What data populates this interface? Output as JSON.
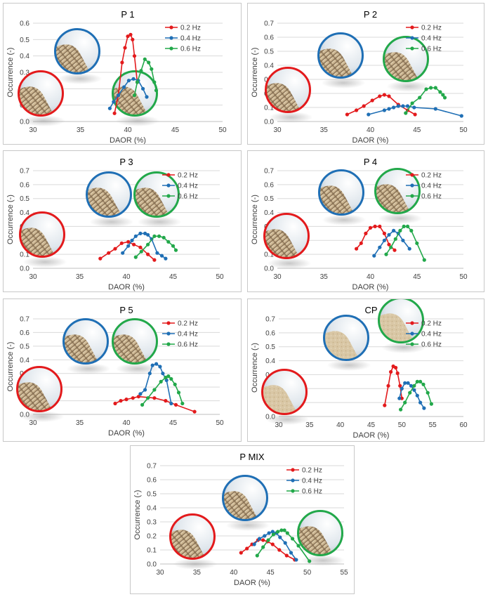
{
  "legend_labels": [
    "0.2 Hz",
    "0.4 Hz",
    "0.6 Hz"
  ],
  "colors": {
    "s02": "#e31a1c",
    "s04": "#1f6fb5",
    "s06": "#22a84a"
  },
  "chart_data": [
    {
      "type": "line",
      "title": "P 1",
      "xlabel": "DAOR (%)",
      "ylabel": "Occurrence (-)",
      "xlim": [
        30,
        50
      ],
      "ylim": [
        0,
        0.6
      ],
      "xticks": [
        30,
        35,
        40,
        45,
        50
      ],
      "yticks": [
        0,
        0.1,
        0.2,
        0.3,
        0.4,
        0.5,
        0.6
      ],
      "legend_position": "top-right",
      "grid": true,
      "series": [
        {
          "name": "0.2 Hz",
          "x": [
            38.6,
            39.0,
            39.4,
            39.7,
            40.0,
            40.3,
            40.5,
            40.7,
            41.0
          ],
          "y": [
            0.05,
            0.16,
            0.36,
            0.45,
            0.52,
            0.53,
            0.5,
            0.4,
            0.24
          ]
        },
        {
          "name": "0.4 Hz",
          "x": [
            38.1,
            38.5,
            39.0,
            39.6,
            40.1,
            40.6,
            41.1,
            41.6,
            42.0
          ],
          "y": [
            0.08,
            0.12,
            0.16,
            0.21,
            0.25,
            0.26,
            0.25,
            0.2,
            0.15
          ]
        },
        {
          "name": "0.6 Hz",
          "x": [
            40.7,
            41.0,
            41.4,
            41.8,
            42.2,
            42.5,
            42.8,
            43.0
          ],
          "y": [
            0.16,
            0.24,
            0.31,
            0.38,
            0.36,
            0.32,
            0.24,
            0.19
          ]
        }
      ]
    },
    {
      "type": "line",
      "title": "P 2",
      "xlabel": "DAOR (%)",
      "ylabel": "Occurrence (-)",
      "xlim": [
        30,
        50
      ],
      "ylim": [
        0,
        0.7
      ],
      "xticks": [
        30,
        35,
        40,
        45,
        50
      ],
      "yticks": [
        0,
        0.1,
        0.2,
        0.3,
        0.4,
        0.5,
        0.6,
        0.7
      ],
      "legend_position": "top-right",
      "grid": true,
      "series": [
        {
          "name": "0.2 Hz",
          "x": [
            37.5,
            38.5,
            39.3,
            40.2,
            41.0,
            41.5,
            42.0,
            43.0,
            44.0,
            44.8
          ],
          "y": [
            0.05,
            0.08,
            0.11,
            0.15,
            0.18,
            0.19,
            0.18,
            0.12,
            0.08,
            0.05
          ]
        },
        {
          "name": "0.4 Hz",
          "x": [
            39.8,
            41.5,
            42.0,
            42.5,
            43.0,
            43.5,
            44.0,
            44.7,
            47.0,
            49.8
          ],
          "y": [
            0.05,
            0.08,
            0.09,
            0.1,
            0.11,
            0.11,
            0.11,
            0.1,
            0.09,
            0.04
          ]
        },
        {
          "name": "0.6 Hz",
          "x": [
            43.8,
            44.5,
            45.3,
            46.0,
            46.5,
            47.0,
            47.5,
            47.8,
            48.0
          ],
          "y": [
            0.06,
            0.13,
            0.17,
            0.23,
            0.24,
            0.24,
            0.21,
            0.19,
            0.17
          ]
        }
      ]
    },
    {
      "type": "line",
      "title": "P 3",
      "xlabel": "DAOR (%)",
      "ylabel": "Occurrence (-)",
      "xlim": [
        30,
        50
      ],
      "ylim": [
        0,
        0.7
      ],
      "xticks": [
        30,
        35,
        40,
        45,
        50
      ],
      "yticks": [
        0,
        0.1,
        0.2,
        0.3,
        0.4,
        0.5,
        0.6,
        0.7
      ],
      "legend_position": "top-right",
      "grid": true,
      "series": [
        {
          "name": "0.2 Hz",
          "x": [
            37.2,
            38.1,
            38.8,
            39.5,
            40.2,
            40.8,
            41.5,
            42.3,
            43.0
          ],
          "y": [
            0.07,
            0.11,
            0.14,
            0.18,
            0.19,
            0.17,
            0.15,
            0.1,
            0.06
          ]
        },
        {
          "name": "0.4 Hz",
          "x": [
            39.6,
            40.2,
            40.6,
            41.0,
            41.5,
            42.0,
            42.3,
            42.7,
            43.3,
            43.8,
            44.2
          ],
          "y": [
            0.11,
            0.16,
            0.2,
            0.23,
            0.25,
            0.25,
            0.24,
            0.21,
            0.11,
            0.09,
            0.07
          ]
        },
        {
          "name": "0.6 Hz",
          "x": [
            41.0,
            41.6,
            42.3,
            43.0,
            43.5,
            44.0,
            44.5,
            45.0,
            45.3
          ],
          "y": [
            0.08,
            0.12,
            0.17,
            0.23,
            0.23,
            0.22,
            0.19,
            0.16,
            0.13
          ]
        }
      ]
    },
    {
      "type": "line",
      "title": "P 4",
      "xlabel": "DAOR (%)",
      "ylabel": "Occurrence (-)",
      "xlim": [
        30,
        50
      ],
      "ylim": [
        0,
        0.7
      ],
      "xticks": [
        30,
        35,
        40,
        45,
        50
      ],
      "yticks": [
        0,
        0.1,
        0.2,
        0.3,
        0.4,
        0.5,
        0.6,
        0.7
      ],
      "legend_position": "top-right",
      "grid": true,
      "series": [
        {
          "name": "0.2 Hz",
          "x": [
            38.5,
            39.0,
            39.5,
            40.0,
            40.5,
            41.0,
            41.5,
            42.0,
            42.6
          ],
          "y": [
            0.14,
            0.18,
            0.25,
            0.29,
            0.3,
            0.3,
            0.25,
            0.17,
            0.13
          ]
        },
        {
          "name": "0.4 Hz",
          "x": [
            40.4,
            41.0,
            41.5,
            42.0,
            42.5,
            43.0,
            43.5,
            44.2
          ],
          "y": [
            0.09,
            0.15,
            0.2,
            0.24,
            0.27,
            0.25,
            0.2,
            0.14
          ]
        },
        {
          "name": "0.6 Hz",
          "x": [
            41.7,
            42.2,
            42.7,
            43.2,
            43.6,
            44.0,
            44.4,
            45.0,
            45.8
          ],
          "y": [
            0.1,
            0.15,
            0.21,
            0.27,
            0.3,
            0.3,
            0.27,
            0.18,
            0.06
          ]
        }
      ]
    },
    {
      "type": "line",
      "title": "P 5",
      "xlabel": "DAOR (%)",
      "ylabel": "Occurrence (-)",
      "xlim": [
        30,
        50
      ],
      "ylim": [
        0,
        0.7
      ],
      "xticks": [
        30,
        35,
        40,
        45,
        50
      ],
      "yticks": [
        0,
        0.1,
        0.2,
        0.3,
        0.4,
        0.5,
        0.6,
        0.7
      ],
      "legend_position": "top-right",
      "grid": true,
      "series": [
        {
          "name": "0.2 Hz",
          "x": [
            38.8,
            39.4,
            40.0,
            40.7,
            41.3,
            43.0,
            44.2,
            45.3,
            47.3
          ],
          "y": [
            0.08,
            0.1,
            0.11,
            0.12,
            0.13,
            0.12,
            0.1,
            0.07,
            0.02
          ]
        },
        {
          "name": "0.4 Hz",
          "x": [
            41.5,
            42.0,
            42.5,
            42.8,
            43.2,
            43.6,
            43.9,
            44.3,
            44.8
          ],
          "y": [
            0.15,
            0.18,
            0.3,
            0.36,
            0.37,
            0.35,
            0.3,
            0.25,
            0.08
          ]
        },
        {
          "name": "0.6 Hz",
          "x": [
            41.7,
            42.3,
            43.0,
            43.7,
            44.2,
            44.5,
            44.8,
            45.2,
            45.6,
            46.0
          ],
          "y": [
            0.07,
            0.12,
            0.18,
            0.24,
            0.27,
            0.28,
            0.26,
            0.22,
            0.16,
            0.08
          ]
        }
      ]
    },
    {
      "type": "line",
      "title": "CP",
      "xlabel": "DAOR (%)",
      "ylabel": "Occurrence (-)",
      "xlim": [
        30,
        60
      ],
      "ylim": [
        0,
        0.7
      ],
      "xticks": [
        30,
        35,
        40,
        45,
        50,
        55,
        60
      ],
      "yticks": [
        0,
        0.1,
        0.2,
        0.3,
        0.4,
        0.5,
        0.6,
        0.7
      ],
      "legend_position": "top-right",
      "grid": true,
      "series": [
        {
          "name": "0.2 Hz",
          "x": [
            47.2,
            47.8,
            48.2,
            48.6,
            49.0,
            49.3,
            49.7,
            50.0
          ],
          "y": [
            0.08,
            0.22,
            0.32,
            0.36,
            0.35,
            0.31,
            0.22,
            0.13
          ]
        },
        {
          "name": "0.4 Hz",
          "x": [
            49.6,
            50.0,
            50.5,
            51.0,
            51.5,
            52.0,
            52.5,
            53.0,
            53.6
          ],
          "y": [
            0.13,
            0.2,
            0.24,
            0.24,
            0.22,
            0.19,
            0.15,
            0.1,
            0.06
          ]
        },
        {
          "name": "0.6 Hz",
          "x": [
            49.8,
            50.5,
            51.3,
            52.0,
            52.5,
            53.0,
            53.5,
            54.2,
            54.8
          ],
          "y": [
            0.05,
            0.1,
            0.17,
            0.22,
            0.25,
            0.25,
            0.23,
            0.17,
            0.09
          ]
        }
      ]
    },
    {
      "type": "line",
      "title": "P MIX",
      "xlabel": "DAOR (%)",
      "ylabel": "Occurrence (-)",
      "xlim": [
        30,
        55
      ],
      "ylim": [
        0,
        0.7
      ],
      "xticks": [
        30,
        35,
        40,
        45,
        50,
        55
      ],
      "yticks": [
        0,
        0.1,
        0.2,
        0.3,
        0.4,
        0.5,
        0.6,
        0.7
      ],
      "legend_position": "top-right",
      "grid": true,
      "series": [
        {
          "name": "0.2 Hz",
          "x": [
            41.0,
            41.8,
            42.5,
            43.3,
            44.0,
            44.6,
            45.3,
            46.2,
            47.2,
            48.3
          ],
          "y": [
            0.08,
            0.11,
            0.14,
            0.17,
            0.17,
            0.16,
            0.14,
            0.1,
            0.06,
            0.03
          ]
        },
        {
          "name": "0.4 Hz",
          "x": [
            42.8,
            43.5,
            44.2,
            44.8,
            45.3,
            45.8,
            46.3,
            47.0,
            47.8,
            48.5
          ],
          "y": [
            0.14,
            0.18,
            0.2,
            0.22,
            0.23,
            0.22,
            0.19,
            0.15,
            0.08,
            0.03
          ]
        },
        {
          "name": "0.6 Hz",
          "x": [
            43.2,
            44.0,
            44.7,
            45.4,
            46.0,
            46.5,
            46.9,
            47.3,
            48.0,
            48.8,
            50.3
          ],
          "y": [
            0.06,
            0.12,
            0.17,
            0.21,
            0.23,
            0.24,
            0.24,
            0.22,
            0.18,
            0.13,
            0.02
          ]
        }
      ]
    }
  ],
  "photos": [
    [
      {
        "kind": "pellet-photo",
        "series": "0.2 Hz"
      },
      {
        "kind": "pellet-photo",
        "series": "0.4 Hz"
      },
      {
        "kind": "pellet-photo",
        "series": "0.6 Hz"
      }
    ],
    [
      {
        "kind": "pellet-photo",
        "series": "0.2 Hz"
      },
      {
        "kind": "pellet-photo",
        "series": "0.4 Hz"
      },
      {
        "kind": "pellet-photo",
        "series": "0.6 Hz"
      }
    ],
    [
      {
        "kind": "pellet-photo",
        "series": "0.2 Hz"
      },
      {
        "kind": "pellet-photo",
        "series": "0.4 Hz"
      },
      {
        "kind": "pellet-photo",
        "series": "0.6 Hz"
      }
    ],
    [
      {
        "kind": "pellet-photo",
        "series": "0.2 Hz"
      },
      {
        "kind": "pellet-photo",
        "series": "0.4 Hz"
      },
      {
        "kind": "pellet-photo",
        "series": "0.6 Hz"
      }
    ],
    [
      {
        "kind": "pellet-photo",
        "series": "0.2 Hz"
      },
      {
        "kind": "pellet-photo",
        "series": "0.4 Hz"
      },
      {
        "kind": "pellet-photo",
        "series": "0.6 Hz"
      }
    ],
    [
      {
        "kind": "powder-photo",
        "series": "0.2 Hz"
      },
      {
        "kind": "powder-photo",
        "series": "0.4 Hz"
      },
      {
        "kind": "powder-photo",
        "series": "0.6 Hz"
      }
    ],
    [
      {
        "kind": "pellet-photo",
        "series": "0.2 Hz"
      },
      {
        "kind": "pellet-photo",
        "series": "0.4 Hz"
      },
      {
        "kind": "pellet-photo",
        "series": "0.6 Hz"
      }
    ]
  ]
}
